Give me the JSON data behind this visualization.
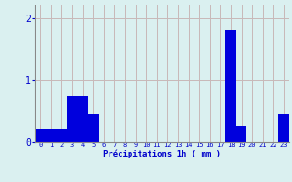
{
  "values": [
    0.2,
    0.2,
    0.2,
    0.75,
    0.75,
    0.45,
    0.0,
    0.0,
    0.0,
    0.0,
    0.0,
    0.0,
    0.0,
    0.0,
    0.0,
    0.0,
    0.0,
    0.0,
    1.8,
    0.25,
    0.0,
    0.0,
    0.0,
    0.45
  ],
  "bar_color": "#0000dd",
  "background_color": "#daf0f0",
  "grid_color": "#c8b8b8",
  "xlabel": "Précipitations 1h ( mm )",
  "xlabel_color": "#0000cc",
  "tick_color": "#0000cc",
  "ylim": [
    0,
    2.2
  ],
  "yticks": [
    0,
    1,
    2
  ],
  "bar_width": 1.0
}
